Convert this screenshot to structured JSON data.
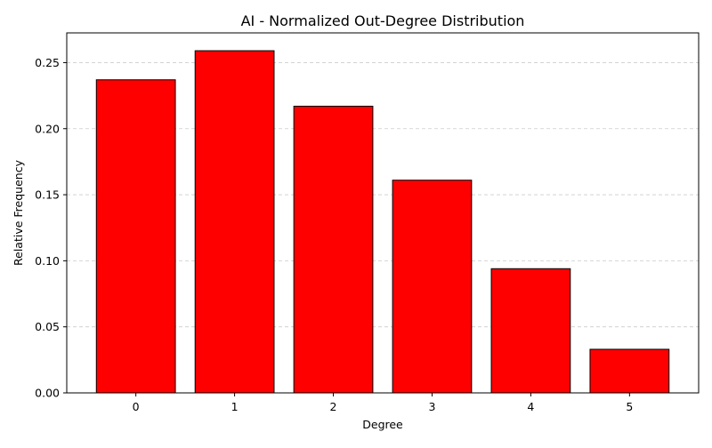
{
  "chart_data": {
    "type": "bar",
    "title": "AI - Normalized Out-Degree Distribution",
    "xlabel": "Degree",
    "ylabel": "Relative Frequency",
    "categories": [
      "0",
      "1",
      "2",
      "3",
      "4",
      "5"
    ],
    "values": [
      0.237,
      0.259,
      0.217,
      0.161,
      0.094,
      0.033
    ],
    "ylim": [
      0,
      0.2725
    ],
    "yticks": [
      0.0,
      0.05,
      0.1,
      0.15,
      0.2,
      0.25
    ],
    "ytick_labels": [
      "0.00",
      "0.05",
      "0.10",
      "0.15",
      "0.20",
      "0.25"
    ],
    "grid": {
      "axis": "y",
      "style": "dashed"
    },
    "colors": {
      "bar_fill": "#ff0000",
      "bar_edge": "#000000",
      "grid": "#cccccc"
    }
  }
}
